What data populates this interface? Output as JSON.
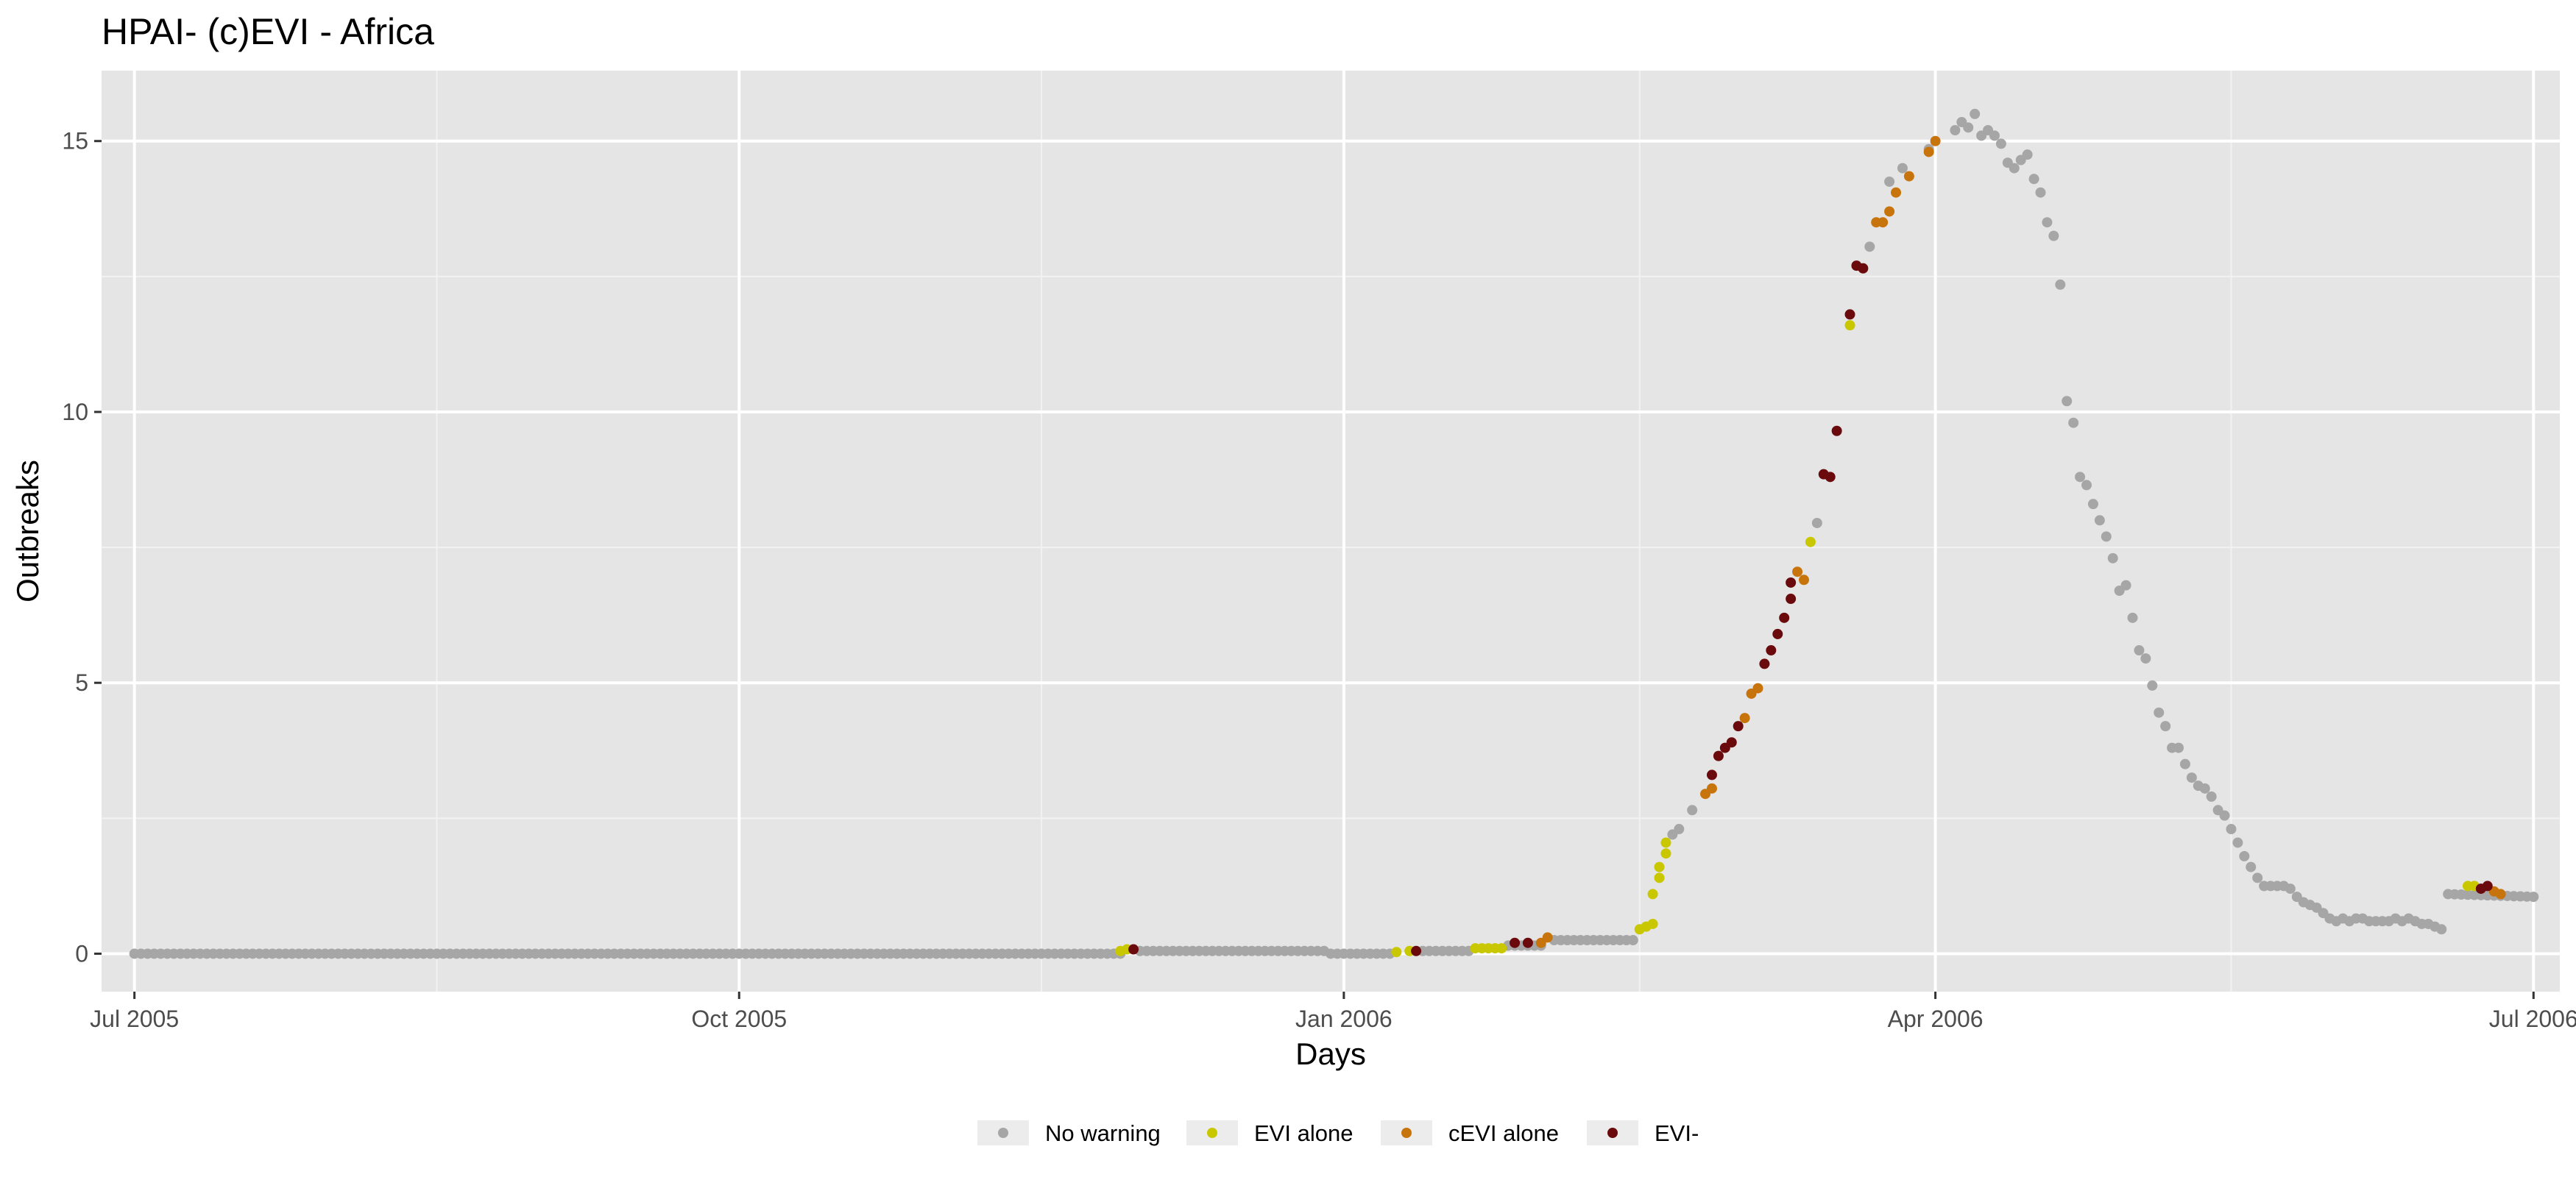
{
  "chart_data": {
    "type": "scatter",
    "title": "HPAI- (c)EVI - Africa",
    "xlabel": "Days",
    "ylabel": "Outbreaks",
    "x_range": [
      "2005-06-26",
      "2006-07-05"
    ],
    "y_range": [
      -0.7,
      16.3
    ],
    "x_ticks": [
      {
        "date": "2005-07-01",
        "label": "Jul 2005"
      },
      {
        "date": "2005-10-01",
        "label": "Oct 2005"
      },
      {
        "date": "2006-01-01",
        "label": "Jan 2006"
      },
      {
        "date": "2006-04-01",
        "label": "Apr 2006"
      },
      {
        "date": "2006-07-01",
        "label": "Jul 2006"
      }
    ],
    "x_minor_ticks": [
      "2005-08-16",
      "2005-11-16",
      "2006-02-15",
      "2006-05-16"
    ],
    "y_ticks": [
      0,
      5,
      10,
      15
    ],
    "y_minor_ticks": [
      2.5,
      7.5,
      12.5
    ],
    "grid": true,
    "background": "#e5e5e5",
    "legend_position": "bottom",
    "series": [
      {
        "name": "No warning",
        "color": "#a6a6a6",
        "segments": [
          [
            "2005-07-01",
            "2005-11-28",
            0,
            0
          ],
          [
            "2005-12-01",
            "2005-12-29",
            0.05,
            0.05
          ],
          [
            "2005-12-30",
            "2006-01-08",
            0,
            0
          ],
          [
            "2006-01-13",
            "2006-01-20",
            0.05,
            0.05
          ],
          [
            "2006-01-26",
            "2006-01-31",
            0.15,
            0.15
          ],
          [
            "2006-02-02",
            "2006-02-14",
            0.25,
            0.25
          ],
          [
            "2006-06-18",
            "2006-07-01",
            1.1,
            1.05
          ]
        ],
        "points": [
          [
            "2006-02-20",
            2.2
          ],
          [
            "2006-02-21",
            2.3
          ],
          [
            "2006-02-23",
            2.65
          ],
          [
            "2006-03-14",
            7.95
          ],
          [
            "2006-03-22",
            13.05
          ],
          [
            "2006-03-25",
            14.25
          ],
          [
            "2006-03-27",
            14.5
          ],
          [
            "2006-03-31",
            14.85
          ],
          [
            "2006-04-04",
            15.2
          ],
          [
            "2006-04-05",
            15.35
          ],
          [
            "2006-04-06",
            15.25
          ],
          [
            "2006-04-07",
            15.5
          ],
          [
            "2006-04-08",
            15.1
          ],
          [
            "2006-04-09",
            15.2
          ],
          [
            "2006-04-10",
            15.1
          ],
          [
            "2006-04-11",
            14.95
          ],
          [
            "2006-04-12",
            14.6
          ],
          [
            "2006-04-13",
            14.5
          ],
          [
            "2006-04-14",
            14.65
          ],
          [
            "2006-04-15",
            14.75
          ],
          [
            "2006-04-16",
            14.3
          ],
          [
            "2006-04-17",
            14.05
          ],
          [
            "2006-04-18",
            13.5
          ],
          [
            "2006-04-19",
            13.25
          ],
          [
            "2006-04-20",
            12.35
          ],
          [
            "2006-04-21",
            10.2
          ],
          [
            "2006-04-22",
            9.8
          ],
          [
            "2006-04-23",
            8.8
          ],
          [
            "2006-04-24",
            8.65
          ],
          [
            "2006-04-25",
            8.3
          ],
          [
            "2006-04-26",
            8.0
          ],
          [
            "2006-04-27",
            7.7
          ],
          [
            "2006-04-28",
            7.3
          ],
          [
            "2006-04-29",
            6.7
          ],
          [
            "2006-04-30",
            6.8
          ],
          [
            "2006-05-01",
            6.2
          ],
          [
            "2006-05-02",
            5.6
          ],
          [
            "2006-05-03",
            5.45
          ],
          [
            "2006-05-04",
            4.95
          ],
          [
            "2006-05-05",
            4.45
          ],
          [
            "2006-05-06",
            4.2
          ],
          [
            "2006-05-07",
            3.8
          ],
          [
            "2006-05-08",
            3.8
          ],
          [
            "2006-05-09",
            3.5
          ],
          [
            "2006-05-10",
            3.25
          ],
          [
            "2006-05-11",
            3.1
          ],
          [
            "2006-05-12",
            3.05
          ],
          [
            "2006-05-13",
            2.9
          ],
          [
            "2006-05-14",
            2.65
          ],
          [
            "2006-05-15",
            2.55
          ],
          [
            "2006-05-16",
            2.3
          ],
          [
            "2006-05-17",
            2.05
          ],
          [
            "2006-05-18",
            1.8
          ],
          [
            "2006-05-19",
            1.6
          ],
          [
            "2006-05-20",
            1.4
          ],
          [
            "2006-05-21",
            1.25
          ],
          [
            "2006-05-22",
            1.25
          ],
          [
            "2006-05-23",
            1.25
          ],
          [
            "2006-05-24",
            1.25
          ],
          [
            "2006-05-25",
            1.2
          ],
          [
            "2006-05-26",
            1.05
          ],
          [
            "2006-05-27",
            0.95
          ],
          [
            "2006-05-28",
            0.9
          ],
          [
            "2006-05-29",
            0.85
          ],
          [
            "2006-05-30",
            0.75
          ],
          [
            "2006-05-31",
            0.65
          ],
          [
            "2006-06-01",
            0.6
          ],
          [
            "2006-06-02",
            0.65
          ],
          [
            "2006-06-03",
            0.6
          ],
          [
            "2006-06-04",
            0.65
          ],
          [
            "2006-06-05",
            0.65
          ],
          [
            "2006-06-06",
            0.6
          ],
          [
            "2006-06-07",
            0.6
          ],
          [
            "2006-06-08",
            0.6
          ],
          [
            "2006-06-09",
            0.6
          ],
          [
            "2006-06-10",
            0.65
          ],
          [
            "2006-06-11",
            0.6
          ],
          [
            "2006-06-12",
            0.65
          ],
          [
            "2006-06-13",
            0.6
          ],
          [
            "2006-06-14",
            0.55
          ],
          [
            "2006-06-15",
            0.55
          ],
          [
            "2006-06-16",
            0.5
          ],
          [
            "2006-06-17",
            0.45
          ]
        ]
      },
      {
        "name": "EVI alone",
        "color": "#c9c800",
        "segments": [
          [
            "2006-01-21",
            "2006-01-25",
            0.1,
            0.1
          ]
        ],
        "points": [
          [
            "2005-11-28",
            0.05
          ],
          [
            "2005-11-29",
            0.08
          ],
          [
            "2006-01-09",
            0.03
          ],
          [
            "2006-01-11",
            0.05
          ],
          [
            "2006-02-15",
            0.45
          ],
          [
            "2006-02-16",
            0.5
          ],
          [
            "2006-02-17",
            0.55
          ],
          [
            "2006-02-17",
            1.1
          ],
          [
            "2006-02-18",
            1.4
          ],
          [
            "2006-02-18",
            1.6
          ],
          [
            "2006-02-19",
            1.85
          ],
          [
            "2006-02-19",
            2.05
          ],
          [
            "2006-03-13",
            7.6
          ],
          [
            "2006-03-19",
            11.6
          ],
          [
            "2006-06-21",
            1.25
          ],
          [
            "2006-06-22",
            1.25
          ]
        ]
      },
      {
        "name": "cEVI alone",
        "color": "#c8740c",
        "segments": [],
        "points": [
          [
            "2006-01-31",
            0.2
          ],
          [
            "2006-02-01",
            0.3
          ],
          [
            "2006-02-25",
            2.95
          ],
          [
            "2006-02-26",
            3.05
          ],
          [
            "2006-03-03",
            4.35
          ],
          [
            "2006-03-04",
            4.8
          ],
          [
            "2006-03-05",
            4.9
          ],
          [
            "2006-03-11",
            7.05
          ],
          [
            "2006-03-12",
            6.9
          ],
          [
            "2006-03-23",
            13.5
          ],
          [
            "2006-03-24",
            13.5
          ],
          [
            "2006-03-25",
            13.7
          ],
          [
            "2006-03-26",
            14.05
          ],
          [
            "2006-03-28",
            14.35
          ],
          [
            "2006-03-31",
            14.8
          ],
          [
            "2006-04-01",
            15.0
          ],
          [
            "2006-06-25",
            1.15
          ],
          [
            "2006-06-26",
            1.1
          ]
        ]
      },
      {
        "name": "EVI-",
        "color": "#6b0a0c",
        "segments": [],
        "points": [
          [
            "2005-11-30",
            0.08
          ],
          [
            "2006-01-12",
            0.05
          ],
          [
            "2006-01-27",
            0.2
          ],
          [
            "2006-01-29",
            0.2
          ],
          [
            "2006-02-26",
            3.3
          ],
          [
            "2006-02-27",
            3.65
          ],
          [
            "2006-02-28",
            3.8
          ],
          [
            "2006-03-01",
            3.9
          ],
          [
            "2006-03-02",
            4.2
          ],
          [
            "2006-03-06",
            5.35
          ],
          [
            "2006-03-07",
            5.6
          ],
          [
            "2006-03-08",
            5.9
          ],
          [
            "2006-03-09",
            6.2
          ],
          [
            "2006-03-10",
            6.55
          ],
          [
            "2006-03-10",
            6.85
          ],
          [
            "2006-03-15",
            8.85
          ],
          [
            "2006-03-16",
            8.8
          ],
          [
            "2006-03-17",
            9.65
          ],
          [
            "2006-03-19",
            11.8
          ],
          [
            "2006-03-20",
            12.7
          ],
          [
            "2006-03-21",
            12.65
          ],
          [
            "2006-06-23",
            1.2
          ],
          [
            "2006-06-24",
            1.25
          ]
        ]
      }
    ]
  }
}
